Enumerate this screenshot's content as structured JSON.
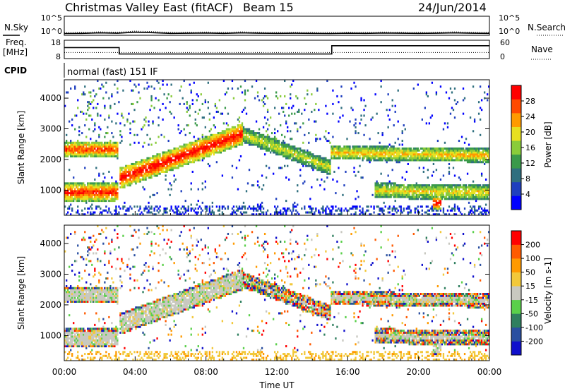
{
  "header": {
    "title": "Christmas Valley East (fitACF)",
    "beam": "Beam 15",
    "date": "24/Jun/2014"
  },
  "labels": {
    "nsky": "N.Sky",
    "nsearch": "N.Search",
    "freq_line1": "Freq.",
    "freq_line2": "[MHz]",
    "nave": "Nave",
    "cpid": "CPID",
    "cpid_value": "normal (fast) 151 IF",
    "x_axis": "Time UT"
  },
  "chart_data": [
    {
      "type": "line",
      "name": "noise",
      "left_ticks": [
        "10^5",
        "10^0"
      ],
      "right_ticks": [
        "10^5",
        "10^0"
      ],
      "series": [
        {
          "name": "N.Sky",
          "values_log10": [
            0.5,
            0.55,
            0.7,
            0.6,
            0.9,
            0.75,
            0.55,
            0.6,
            0.65,
            0.55,
            0.7,
            0.6,
            0.55,
            0.6,
            0.55,
            0.5,
            0.6,
            0.55,
            0.65,
            0.6,
            0.55,
            0.6,
            0.7,
            0.6,
            0.55
          ]
        },
        {
          "name": "N.Search",
          "values_log10": [
            0.8,
            0.85,
            1.0,
            0.9,
            1.2,
            1.05,
            0.85,
            0.9,
            0.95,
            0.85,
            1.0,
            0.9,
            0.85,
            0.9,
            0.85,
            0.8,
            0.9,
            0.85,
            0.95,
            0.9,
            0.85,
            0.9,
            1.0,
            0.9,
            0.85
          ]
        }
      ]
    },
    {
      "type": "line",
      "name": "frequency-nave",
      "left_ticks": [
        "18",
        "8"
      ],
      "right_ticks": [
        "60",
        "0"
      ],
      "freq_steps": [
        {
          "t_start": 0.0,
          "t_end": 3.1,
          "value": 14
        },
        {
          "t_start": 3.1,
          "t_end": 15.1,
          "value": 10.5
        },
        {
          "t_start": 15.1,
          "t_end": 24.0,
          "value": 15
        }
      ],
      "nave_level": 20
    },
    {
      "type": "heatmap",
      "name": "power",
      "ylabel": "Slant Range [km]",
      "yticks": [
        1000,
        2000,
        3000,
        4000
      ],
      "ylim": [
        180,
        4600
      ],
      "xlim": [
        0,
        24
      ],
      "xticks": [
        "00:00",
        "04:00",
        "08:00",
        "12:00",
        "16:00",
        "20:00",
        "00:00"
      ],
      "colorbar": {
        "label": "Power [dB]",
        "ticks": [
          "28",
          "24",
          "20",
          "16",
          "12",
          "8",
          "4"
        ],
        "colors": [
          "#0000ff",
          "#1f3fbf",
          "#2f6f7f",
          "#3a9a4a",
          "#8acc3a",
          "#e8e020",
          "#ff9a00",
          "#ff4a00",
          "#ff0000"
        ]
      },
      "bands": [
        {
          "t": [
            0.0,
            3.0
          ],
          "r_center": [
            2300,
            2300
          ],
          "width": 260,
          "intensity": 0.85
        },
        {
          "t": [
            0.0,
            3.0
          ],
          "r_center": [
            900,
            900
          ],
          "width": 300,
          "intensity": 0.9
        },
        {
          "t": [
            3.1,
            10.0
          ],
          "r_center": [
            1350,
            2800
          ],
          "width": 350,
          "intensity": 0.95
        },
        {
          "t": [
            10.0,
            15.0
          ],
          "r_center": [
            2800,
            1700
          ],
          "width": 250,
          "intensity": 0.55
        },
        {
          "t": [
            15.0,
            24.0
          ],
          "r_center": [
            2200,
            2100
          ],
          "width": 230,
          "intensity": 0.65
        },
        {
          "t": [
            17.5,
            24.0
          ],
          "r_center": [
            950,
            900
          ],
          "width": 250,
          "intensity": 0.6
        },
        {
          "t": [
            20.8,
            21.2
          ],
          "r_center": [
            550,
            550
          ],
          "width": 200,
          "intensity": 1.0
        }
      ]
    },
    {
      "type": "heatmap",
      "name": "velocity",
      "ylabel": "Slant Range [km]",
      "yticks": [
        1000,
        2000,
        3000,
        4000
      ],
      "ylim": [
        180,
        4600
      ],
      "xlim": [
        0,
        24
      ],
      "xticks": [
        "00:00",
        "04:00",
        "08:00",
        "12:00",
        "16:00",
        "20:00",
        "00:00"
      ],
      "colorbar": {
        "label": "Velocity [m s-1]",
        "ticks": [
          "200",
          "100",
          "50",
          "15",
          "-15",
          "-50",
          "-100",
          "-200"
        ],
        "colors": [
          "#1010cc",
          "#2a4fa0",
          "#2f7f5f",
          "#5ad04a",
          "#c8c8c0",
          "#f2c83a",
          "#ff9a00",
          "#ff5a00",
          "#ff0000"
        ]
      }
    }
  ]
}
